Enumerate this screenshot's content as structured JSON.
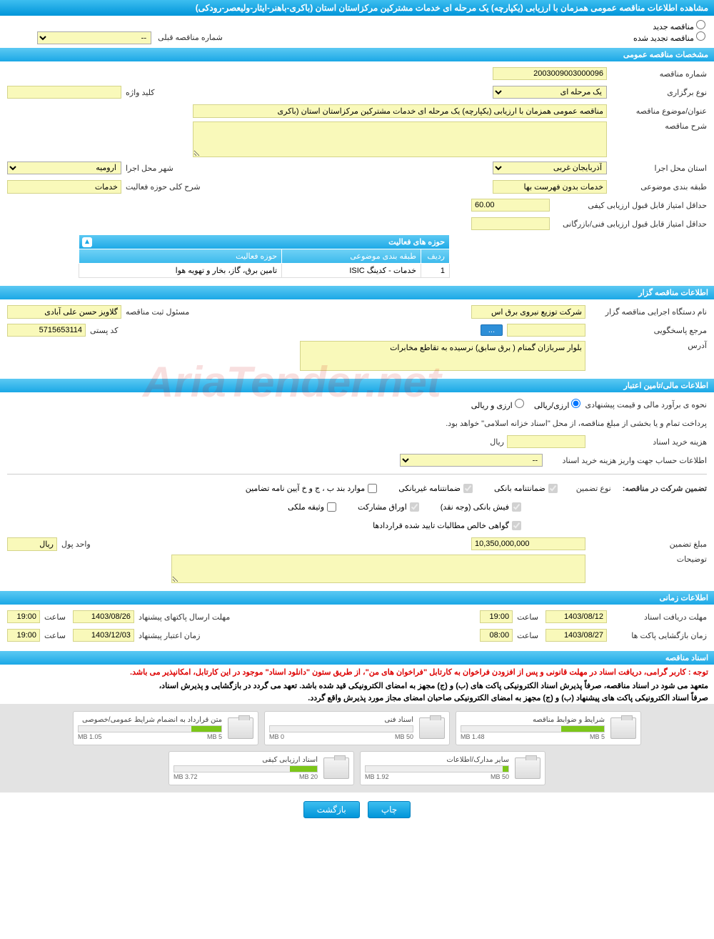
{
  "page_title": "مشاهده اطلاعات مناقصه عمومی همزمان با ارزیابی (یکپارچه) یک مرحله ای خدمات مشترکین مرکزاستان استان (باکری-باهنر-ایثار-ولیعصر-رودکی)",
  "radio": {
    "new": "مناقصه جدید",
    "renewed": "مناقصه تجدید شده"
  },
  "prev_label": "شماره مناقصه قبلی",
  "sections": {
    "general": "مشخصات مناقصه عمومی",
    "holder": "اطلاعات مناقصه گزار",
    "finance": "اطلاعات مالی/تامین اعتبار",
    "time": "اطلاعات زمانی",
    "docs": "اسناد مناقصه"
  },
  "general": {
    "tender_no_lbl": "شماره مناقصه",
    "tender_no": "2003009003000096",
    "type_lbl": "نوع برگزاری",
    "type": "یک مرحله ای",
    "keyword_lbl": "کلید واژه",
    "subject_lbl": "عنوان/موضوع مناقصه",
    "subject": "مناقصه عمومی همزمان با ارزیابی (یکپارچه) یک مرحله ای خدمات مشترکین مرکزاستان استان (باکری",
    "desc_lbl": "شرح مناقصه",
    "province_lbl": "استان محل اجرا",
    "province": "آذربایجان غربی",
    "city_lbl": "شهر محل اجرا",
    "city": "ارومیه",
    "class_lbl": "طبقه بندی موضوعی",
    "class": "خدمات بدون فهرست بها",
    "scope_lbl": "شرح کلی حوزه فعالیت",
    "scope": "خدمات",
    "min_qual_lbl": "حداقل امتیاز قابل قبول ارزیابی کیفی",
    "min_qual": "60.00",
    "min_tech_lbl": "حداقل امتیاز قابل قبول ارزیابی فنی/بازرگانی"
  },
  "act_table": {
    "title": "حوزه های فعالیت",
    "h1": "ردیف",
    "h2": "طبقه بندی موضوعی",
    "h3": "حوزه فعالیت",
    "r1c1": "1",
    "r1c2": "خدمات - کدینگ ISIC",
    "r1c3": "تامین برق، گاز، بخار و تهویه هوا"
  },
  "holder": {
    "org_lbl": "نام دستگاه اجرایی مناقصه گزار",
    "org": "شرکت توزیع نیروی برق اس",
    "reg_lbl": "مسئول ثبت مناقصه",
    "reg": "گلاویز حسن علی آبادی",
    "resp_lbl": "مرجع پاسخگویی",
    "post_lbl": "کد پستی",
    "post": "5715653114",
    "addr_lbl": "آدرس",
    "addr": "بلوار سربازان گمنام ( برق سابق) نرسیده به تقاطع مخابرات",
    "more_btn": "..."
  },
  "finance": {
    "est_lbl": "نحوه ی برآورد مالی و قیمت پیشنهادی",
    "opt1": "ارزی/ریالی",
    "opt2": "ارزی و ریالی",
    "note": "پرداخت تمام و یا بخشی از مبلغ مناقصه، از محل \"اسناد خزانه اسلامی\" خواهد بود.",
    "buy_lbl": "هزینه خرید اسناد",
    "rial": "ریال",
    "acc_lbl": "اطلاعات حساب جهت واریز هزینه خرید اسناد",
    "guar_title": "تضمین شرکت در مناقصه:",
    "guar_type_lbl": "نوع تضمین",
    "g1": "ضمانتنامه بانکی",
    "g2": "ضمانتنامه غیربانکی",
    "g3": "موارد بند ب ، ج و خ آیین نامه تضامین",
    "g4": "فیش بانکی (وجه نقد)",
    "g5": "اوراق مشارکت",
    "g6": "وثیقه ملکی",
    "g7": "گواهی خالص مطالبات تایید شده قراردادها",
    "amt_lbl": "مبلغ تضمین",
    "amt": "10,350,000,000",
    "unit_lbl": "واحد پول",
    "unit": "ریال",
    "note2_lbl": "توضیحات"
  },
  "time": {
    "recv_lbl": "مهلت دریافت اسناد",
    "recv_d": "1403/08/12",
    "recv_t": "19:00",
    "send_lbl": "مهلت ارسال پاکتهای پیشنهاد",
    "send_d": "1403/08/26",
    "send_t": "19:00",
    "open_lbl": "زمان بازگشایی پاکت ها",
    "open_d": "1403/08/27",
    "open_t": "08:00",
    "valid_lbl": "زمان اعتبار پیشنهاد",
    "valid_d": "1403/12/03",
    "valid_t": "19:00",
    "hour": "ساعت"
  },
  "docs": {
    "note1": "توجه : کاربر گرامی، دریافت اسناد در مهلت قانونی و پس از افزودن فراخوان به کارتابل \"فراخوان های من\"، از طریق ستون \"دانلود اسناد\" موجود در این کارتابل، امکانپذیر می باشد.",
    "note2": "متعهد می شود در اسناد مناقصه، صرفاً پذیرش اسناد الکترونیکی پاکت های (ب) و (ج) مجهز به امضای الکترونیکی قید شده باشد. تعهد می گردد در بازگشایی و پذیرش اسناد،",
    "note3": "صرفاً اسناد الکترونیکی پاکت های پیشنهاد (ب) و (ج) مجهز به امضای الکترونیکی صاحبان امضای مجاز مورد پذیرش واقع گردد.",
    "files": [
      {
        "t": "شرایط و ضوابط مناقصه",
        "u": "1.48 MB",
        "m": "5 MB",
        "p": 30
      },
      {
        "t": "اسناد فنی",
        "u": "0 MB",
        "m": "50 MB",
        "p": 0
      },
      {
        "t": "متن قرارداد به انضمام شرایط عمومی/خصوصی",
        "u": "1.05 MB",
        "m": "5 MB",
        "p": 21
      },
      {
        "t": "سایر مدارک/اطلاعات",
        "u": "1.92 MB",
        "m": "50 MB",
        "p": 4
      },
      {
        "t": "اسناد ارزیابی کیفی",
        "u": "3.72 MB",
        "m": "20 MB",
        "p": 19
      }
    ]
  },
  "buttons": {
    "print": "چاپ",
    "back": "بازگشت"
  },
  "watermark": "AriaTender.net",
  "colors": {
    "header": "#1ba8e6",
    "field": "#f9f9ba",
    "btn": "#0095d9"
  }
}
